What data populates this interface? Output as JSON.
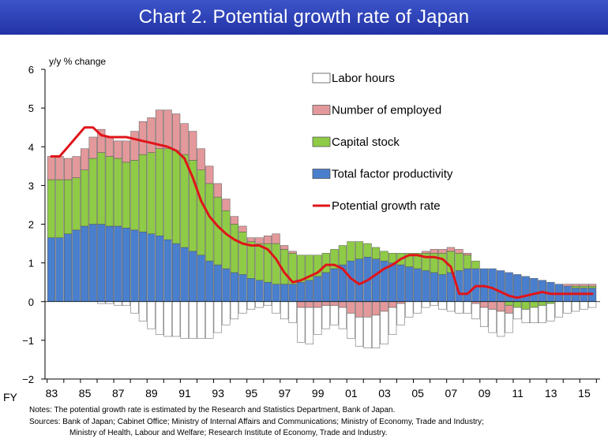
{
  "banner": {
    "title": "Chart 2. Potential growth rate of Japan"
  },
  "notes": {
    "line1": "Notes: The potential growth rate is estimated by the Research and Statistics Department, Bank of Japan.",
    "line2": "Sources: Bank of Japan; Cabinet Office; Ministry of Internal Affairs and Communications; Ministry of Economy, Trade and Industry;",
    "line3": "Ministry of Health, Labour and Welfare; Research Institute of Economy, Trade and Industry."
  },
  "colors": {
    "labor_hours": "#ffffff",
    "employed": "#e3999b",
    "capital": "#8fcb46",
    "tfp": "#4a7fcd",
    "potential": "#e0141a",
    "bar_stroke": "#555555"
  },
  "chart_data": {
    "type": "bar",
    "stacked": true,
    "title": "",
    "ylabel": "y/y % change",
    "xlabel": "",
    "x_prefix": "FY",
    "ylim": [
      -2,
      6
    ],
    "yticks": [
      -2,
      -1,
      0,
      1,
      2,
      3,
      4,
      5,
      6
    ],
    "x": [
      "83 H1",
      "83 H2",
      "84 H1",
      "84 H2",
      "85 H1",
      "85 H2",
      "86 H1",
      "86 H2",
      "87 H1",
      "87 H2",
      "88 H1",
      "88 H2",
      "89 H1",
      "89 H2",
      "90 H1",
      "90 H2",
      "91 H1",
      "91 H2",
      "92 H1",
      "92 H2",
      "93 H1",
      "93 H2",
      "94 H1",
      "94 H2",
      "95 H1",
      "95 H2",
      "96 H1",
      "96 H2",
      "97 H1",
      "97 H2",
      "98 H1",
      "98 H2",
      "99 H1",
      "99 H2",
      "00 H1",
      "00 H2",
      "01 H1",
      "01 H2",
      "02 H1",
      "02 H2",
      "03 H1",
      "03 H2",
      "04 H1",
      "04 H2",
      "05 H1",
      "05 H2",
      "06 H1",
      "06 H2",
      "07 H1",
      "07 H2",
      "08 H1",
      "08 H2",
      "09 H1",
      "09 H2",
      "10 H1",
      "10 H2",
      "11 H1",
      "11 H2",
      "12 H1",
      "12 H2",
      "13 H1",
      "13 H2",
      "14 H1",
      "14 H2",
      "15 H1",
      "15 H2"
    ],
    "xtick_labels": [
      "83",
      "85",
      "87",
      "89",
      "91",
      "93",
      "95",
      "97",
      "99",
      "01",
      "03",
      "05",
      "07",
      "09",
      "11",
      "13",
      "15"
    ],
    "legend": [
      "Labor hours",
      "Number of employed",
      "Capital stock",
      "Total factor productivity",
      "Potential growth rate"
    ],
    "legend_position": "top-right",
    "series": [
      {
        "name": "Total factor productivity",
        "kind": "bar",
        "values": [
          1.65,
          1.65,
          1.75,
          1.85,
          1.95,
          2.0,
          2.0,
          1.95,
          1.95,
          1.9,
          1.85,
          1.8,
          1.75,
          1.7,
          1.6,
          1.5,
          1.4,
          1.3,
          1.2,
          1.05,
          0.95,
          0.85,
          0.75,
          0.7,
          0.6,
          0.55,
          0.5,
          0.45,
          0.45,
          0.45,
          0.5,
          0.55,
          0.65,
          0.75,
          0.85,
          0.95,
          1.05,
          1.1,
          1.15,
          1.1,
          1.05,
          1.0,
          0.95,
          0.9,
          0.85,
          0.8,
          0.75,
          0.7,
          0.75,
          0.8,
          0.85,
          0.85,
          0.85,
          0.85,
          0.8,
          0.75,
          0.7,
          0.65,
          0.6,
          0.55,
          0.5,
          0.45,
          0.4,
          0.35,
          0.35,
          0.35
        ]
      },
      {
        "name": "Capital stock",
        "kind": "bar",
        "values": [
          1.5,
          1.5,
          1.4,
          1.35,
          1.45,
          1.7,
          1.85,
          1.8,
          1.75,
          1.7,
          1.8,
          2.0,
          2.1,
          2.25,
          2.35,
          2.4,
          2.4,
          2.35,
          2.2,
          2.0,
          1.75,
          1.5,
          1.25,
          1.1,
          0.95,
          0.95,
          1.0,
          1.05,
          0.9,
          0.8,
          0.7,
          0.65,
          0.55,
          0.5,
          0.5,
          0.5,
          0.5,
          0.45,
          0.35,
          0.3,
          0.25,
          0.25,
          0.3,
          0.35,
          0.4,
          0.45,
          0.5,
          0.55,
          0.55,
          0.45,
          0.35,
          0.2,
          0.0,
          0.0,
          0.0,
          0.0,
          0.0,
          0.0,
          0.0,
          0.0,
          0.0,
          0.0,
          0.0,
          0.05,
          0.05,
          0.05
        ]
      },
      {
        "name": "Number of employed",
        "kind": "bar",
        "values": [
          0.6,
          0.6,
          0.55,
          0.55,
          0.55,
          0.55,
          0.6,
          0.5,
          0.45,
          0.55,
          0.75,
          0.85,
          0.9,
          1.0,
          1.0,
          0.95,
          0.8,
          0.75,
          0.55,
          0.45,
          0.35,
          0.3,
          0.2,
          0.15,
          0.1,
          0.15,
          0.2,
          0.25,
          0.1,
          0.05,
          0.0,
          0.0,
          0.0,
          0.0,
          0.0,
          0.0,
          0.0,
          0.0,
          0.0,
          0.0,
          0.0,
          0.0,
          0.0,
          0.0,
          0.0,
          0.05,
          0.1,
          0.1,
          0.1,
          0.1,
          0.05,
          0.0,
          0.0,
          0.0,
          0.0,
          0.0,
          0.0,
          0.0,
          0.0,
          0.0,
          0.0,
          0.0,
          0.05,
          0.05,
          0.05,
          0.05
        ]
      },
      {
        "name": "Labor hours",
        "kind": "bar",
        "note": "negative contributions below zero",
        "values": [
          0.0,
          0.0,
          0.0,
          0.0,
          0.0,
          0.0,
          -0.05,
          -0.05,
          -0.1,
          -0.1,
          -0.3,
          -0.5,
          -0.7,
          -0.85,
          -0.9,
          -0.9,
          -0.95,
          -0.95,
          -0.95,
          -0.95,
          -0.8,
          -0.6,
          -0.45,
          -0.3,
          -0.2,
          -0.15,
          -0.1,
          -0.3,
          -0.45,
          -0.55,
          -0.9,
          -0.95,
          -0.7,
          -0.6,
          -0.5,
          -0.55,
          -0.65,
          -0.75,
          -0.8,
          -0.85,
          -0.85,
          -0.7,
          -0.55,
          -0.4,
          -0.3,
          -0.15,
          -0.1,
          -0.2,
          -0.25,
          -0.3,
          -0.3,
          -0.4,
          -0.5,
          -0.6,
          -0.65,
          -0.5,
          -0.3,
          -0.35,
          -0.4,
          -0.45,
          -0.45,
          -0.4,
          -0.3,
          -0.25,
          -0.2,
          -0.15
        ]
      },
      {
        "name": "Number of employed (negative)",
        "kind": "bar",
        "note": "negative contributions of employment",
        "values": [
          0,
          0,
          0,
          0,
          0,
          0,
          0,
          0,
          0,
          0,
          0,
          0,
          0,
          0,
          0,
          0,
          0,
          0,
          0,
          0,
          0,
          0,
          0,
          0,
          0,
          0,
          0,
          0,
          0,
          0,
          -0.15,
          -0.15,
          -0.15,
          -0.1,
          -0.1,
          -0.15,
          -0.3,
          -0.4,
          -0.4,
          -0.35,
          -0.25,
          -0.15,
          -0.05,
          0,
          0,
          0,
          0,
          0,
          0,
          0,
          0,
          -0.05,
          -0.15,
          -0.2,
          -0.25,
          -0.2,
          0,
          0,
          0,
          0,
          0,
          0,
          0,
          0,
          0,
          0
        ]
      },
      {
        "name": "Capital stock (negative)",
        "kind": "bar",
        "note": "negative contributions of capital",
        "values": [
          0,
          0,
          0,
          0,
          0,
          0,
          0,
          0,
          0,
          0,
          0,
          0,
          0,
          0,
          0,
          0,
          0,
          0,
          0,
          0,
          0,
          0,
          0,
          0,
          0,
          0,
          0,
          0,
          0,
          0,
          0,
          0,
          0,
          0,
          0,
          0,
          0,
          0,
          0,
          0,
          0,
          0,
          0,
          0,
          0,
          0,
          0,
          0,
          0,
          0,
          0,
          0,
          0,
          0,
          0,
          -0.1,
          -0.15,
          -0.2,
          -0.15,
          -0.1,
          -0.05,
          0,
          0,
          0,
          0,
          0
        ]
      },
      {
        "name": "Potential growth rate",
        "kind": "line",
        "values": [
          3.75,
          3.75,
          4.0,
          4.25,
          4.5,
          4.5,
          4.3,
          4.25,
          4.25,
          4.25,
          4.2,
          4.15,
          4.1,
          4.05,
          4.0,
          3.9,
          3.7,
          3.2,
          2.6,
          2.2,
          1.95,
          1.75,
          1.6,
          1.5,
          1.45,
          1.45,
          1.35,
          1.1,
          0.75,
          0.5,
          0.55,
          0.65,
          0.75,
          0.95,
          0.95,
          0.85,
          0.6,
          0.45,
          0.55,
          0.7,
          0.85,
          0.95,
          1.1,
          1.2,
          1.2,
          1.15,
          1.15,
          1.1,
          0.9,
          0.2,
          0.2,
          0.4,
          0.4,
          0.35,
          0.25,
          0.15,
          0.1,
          0.15,
          0.2,
          0.25,
          0.2,
          0.2,
          0.2,
          0.2,
          0.2,
          0.2
        ]
      }
    ]
  }
}
